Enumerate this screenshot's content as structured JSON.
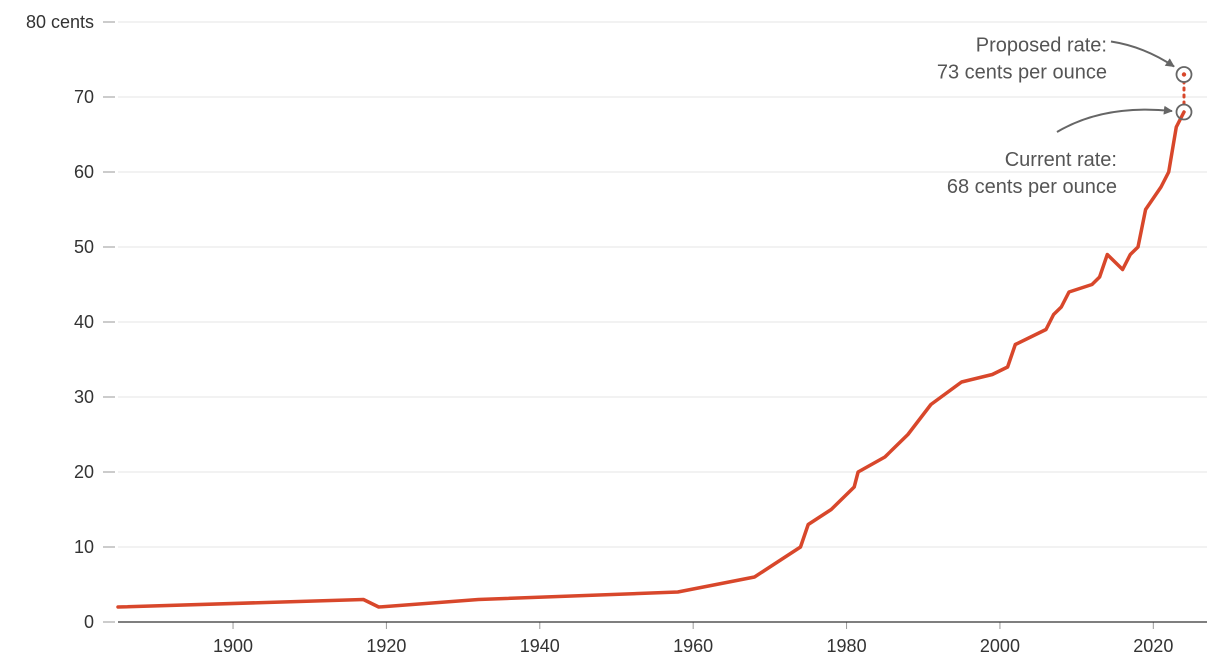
{
  "chart_data": {
    "type": "line",
    "ylim": [
      0,
      80
    ],
    "xlim": [
      1885,
      2027
    ],
    "y_ticks": [
      0,
      10,
      20,
      30,
      40,
      50,
      60,
      70,
      80
    ],
    "y_tick_labels": [
      "0",
      "10",
      "20",
      "30",
      "40",
      "50",
      "60",
      "70",
      "80 cents"
    ],
    "x_ticks": [
      1900,
      1920,
      1940,
      1960,
      1980,
      2000,
      2020
    ],
    "x_tick_labels": [
      "1900",
      "1920",
      "1940",
      "1960",
      "1980",
      "2000",
      "2020"
    ],
    "grid": true,
    "colors": {
      "line": "#d8472b",
      "marker": "#666666",
      "arrow": "#666666"
    },
    "series": [
      {
        "x": [
          1885,
          1917,
          1919,
          1932,
          1958,
          1963,
          1968,
          1971,
          1974,
          1975,
          1978,
          1981,
          1981.5,
          1985,
          1988,
          1991,
          1995,
          1999,
          2001,
          2002,
          2006,
          2007,
          2008,
          2009,
          2012,
          2013,
          2014,
          2016,
          2017,
          2018,
          2019,
          2021,
          2022,
          2023,
          2024
        ],
        "y": [
          2,
          3,
          2,
          3,
          4,
          5,
          6,
          8,
          10,
          13,
          15,
          18,
          20,
          22,
          25,
          29,
          32,
          33,
          34,
          37,
          39,
          41,
          42,
          44,
          45,
          46,
          49,
          47,
          49,
          50,
          55,
          58,
          60,
          66,
          68
        ]
      }
    ],
    "proposed": {
      "x": [
        2024,
        2024
      ],
      "y": [
        68,
        73
      ]
    },
    "annotations": [
      {
        "x": 2024,
        "y": 73,
        "lines": [
          "Proposed rate:",
          "73 cents per ounce"
        ]
      },
      {
        "x": 2024,
        "y": 68,
        "lines": [
          "Current rate:",
          "68 cents per ounce"
        ]
      }
    ]
  }
}
